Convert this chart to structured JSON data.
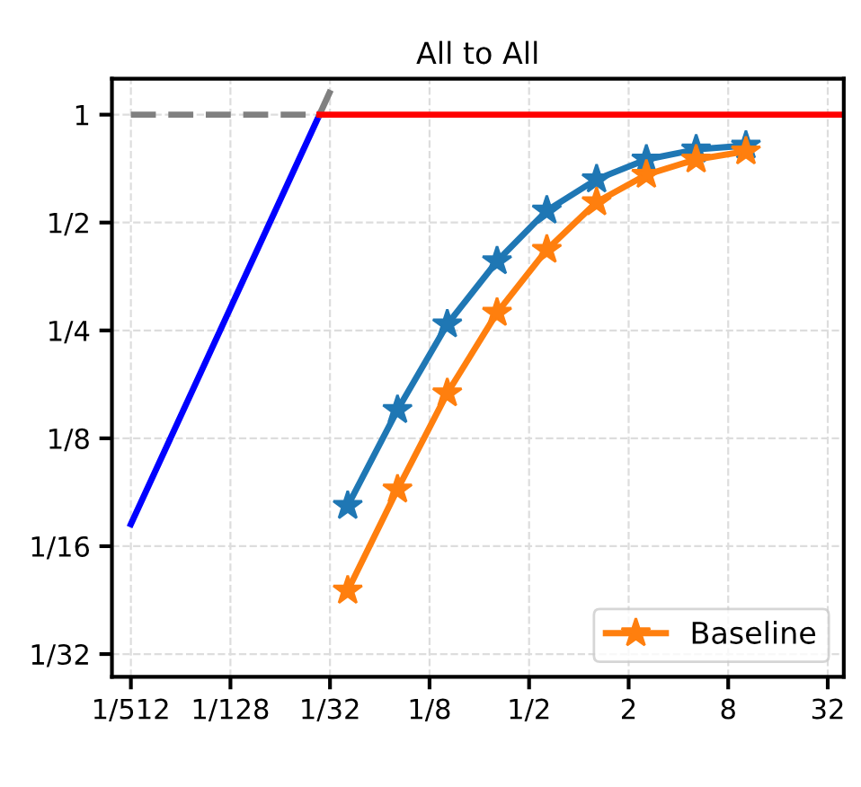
{
  "chart_data": {
    "type": "line",
    "title": "All to All",
    "log": "xy",
    "grid": true,
    "legend": "bottom right",
    "xlim": [
      0.0015,
      40
    ],
    "ylim": [
      0.027,
      1.26
    ],
    "xticks": [
      {
        "value": 0.001953125,
        "label": "1/512"
      },
      {
        "value": 0.0078125,
        "label": "1/128"
      },
      {
        "value": 0.03125,
        "label": "1/32"
      },
      {
        "value": 0.125,
        "label": "1/8"
      },
      {
        "value": 0.5,
        "label": "1/2"
      },
      2,
      8,
      32
    ],
    "yticks": [
      {
        "value": 0.03125,
        "label": "1/32"
      },
      {
        "value": 0.0625,
        "label": "1/16"
      },
      {
        "value": 0.125,
        "label": "1/8"
      },
      {
        "value": 0.25,
        "label": "1/4"
      },
      {
        "value": 0.5,
        "label": "1/2"
      },
      1
    ],
    "series": [
      {
        "color": "#0000ff",
        "x": [
          0.001953125,
          0.027
        ],
        "values": [
          0.072,
          1
        ],
        "marker": "none",
        "line_style": "solid"
      },
      {
        "color": "#808080",
        "x": [
          0.027,
          0.031
        ],
        "values": [
          1,
          1.15
        ],
        "marker": "none",
        "line_style": "solid"
      },
      {
        "color": "#808080",
        "x": [
          0.001953125,
          0.027
        ],
        "values": [
          1,
          1
        ],
        "marker": "none",
        "line_style": "dashed"
      },
      {
        "color": "#ff0000",
        "x": [
          0.027,
          40
        ],
        "values": [
          1,
          1
        ],
        "marker": "none",
        "line_style": "solid"
      },
      {
        "color": "#1f77b4",
        "x": [
          0.04,
          0.08,
          0.16,
          0.32,
          0.64,
          1.28,
          2.56,
          5.12,
          10.24
        ],
        "values": [
          0.081,
          0.15,
          0.26,
          0.39,
          0.54,
          0.66,
          0.75,
          0.8,
          0.82
        ],
        "marker": "star",
        "line_style": "solid"
      },
      {
        "name": "Baseline",
        "color": "#ff7f0e",
        "x": [
          0.04,
          0.08,
          0.16,
          0.32,
          0.64,
          1.28,
          2.56,
          5.12,
          10.24
        ],
        "values": [
          0.047,
          0.09,
          0.167,
          0.28,
          0.42,
          0.57,
          0.68,
          0.75,
          0.79
        ],
        "marker": "star",
        "line_style": "solid"
      }
    ]
  }
}
